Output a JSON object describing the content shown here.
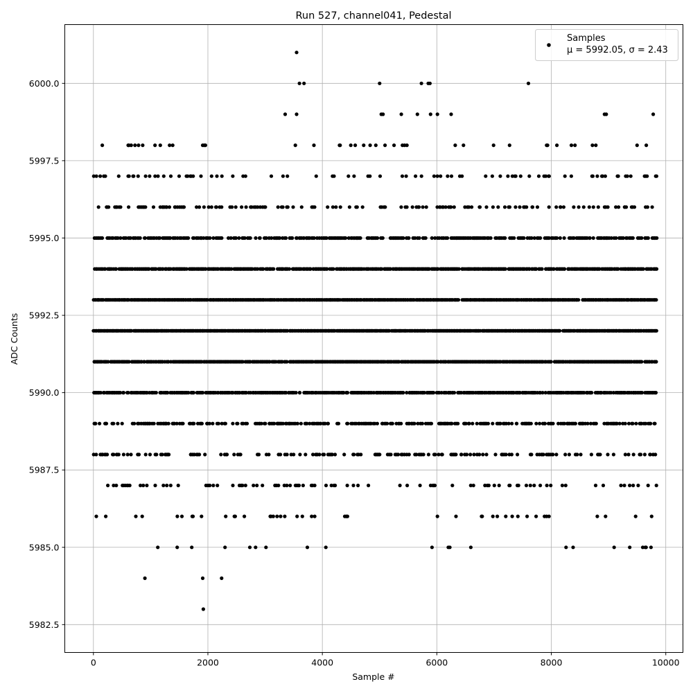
{
  "chart_data": {
    "type": "scatter",
    "title": "Run 527, channel041, Pedestal",
    "xlabel": "Sample #",
    "ylabel": "ADC Counts",
    "xlim": [
      -500,
      10300
    ],
    "ylim": [
      5981.6,
      6001.9
    ],
    "xticks": [
      0,
      2000,
      4000,
      6000,
      8000,
      10000
    ],
    "xtick_labels": [
      "0",
      "2000",
      "4000",
      "6000",
      "8000",
      "10000"
    ],
    "yticks": [
      5982.5,
      5985.0,
      5987.5,
      5990.0,
      5992.5,
      5995.0,
      5997.5,
      6000.0
    ],
    "ytick_labels": [
      "5982.5",
      "5985.0",
      "5987.5",
      "5990.0",
      "5992.5",
      "5995.0",
      "5997.5",
      "6000.0"
    ],
    "grid": true,
    "legend_position": "top-right",
    "marker_color": "#000000",
    "series": [
      {
        "name": "Samples",
        "legend_stats": "μ = 5992.05, σ = 2.43",
        "mu": 5992.05,
        "sigma": 2.43,
        "x_max": 9840,
        "outliers": [
          {
            "x": 3550,
            "y": 6001
          },
          {
            "x": 3600,
            "y": 6000
          },
          {
            "x": 3680,
            "y": 6000
          },
          {
            "x": 5000,
            "y": 6000
          },
          {
            "x": 5730,
            "y": 6000
          },
          {
            "x": 5850,
            "y": 6000
          },
          {
            "x": 5880,
            "y": 6000
          },
          {
            "x": 7600,
            "y": 6000
          },
          {
            "x": 3350,
            "y": 5999
          },
          {
            "x": 3550,
            "y": 5999
          },
          {
            "x": 5030,
            "y": 5999
          },
          {
            "x": 5060,
            "y": 5999
          },
          {
            "x": 5380,
            "y": 5999
          },
          {
            "x": 5660,
            "y": 5999
          },
          {
            "x": 5890,
            "y": 5999
          },
          {
            "x": 6010,
            "y": 5999
          },
          {
            "x": 6250,
            "y": 5999
          },
          {
            "x": 8930,
            "y": 5999
          },
          {
            "x": 8960,
            "y": 5999
          },
          {
            "x": 9780,
            "y": 5999
          },
          {
            "x": 900,
            "y": 5984
          },
          {
            "x": 1910,
            "y": 5984
          },
          {
            "x": 2240,
            "y": 5984
          },
          {
            "x": 1920,
            "y": 5983
          }
        ],
        "level_density": {
          "5998": 0.05,
          "5997": 0.13,
          "5996": 0.27,
          "5995": 0.55,
          "5994": 0.82,
          "5993": 0.95,
          "5992": 0.97,
          "5991": 0.9,
          "5990": 0.75,
          "5989": 0.45,
          "5988": 0.27,
          "5987": 0.14,
          "5986": 0.05,
          "5985": 0.03
        }
      }
    ]
  }
}
